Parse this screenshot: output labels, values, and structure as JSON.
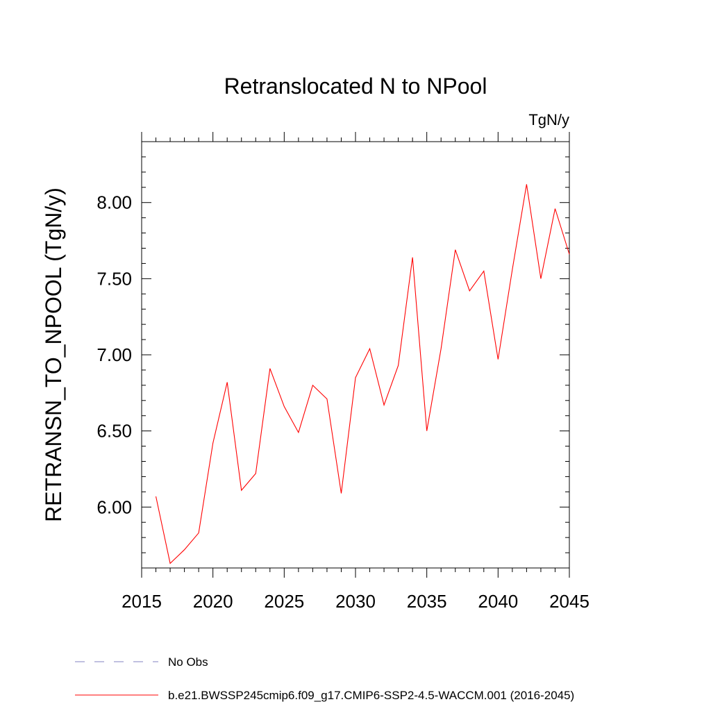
{
  "chart_data": {
    "type": "line",
    "title": "Retranslocated N to NPool",
    "units": "TgN/y",
    "ylabel": "RETRANSN_TO_NPOOL  (TgN/y)",
    "xlabel": "",
    "xlim": [
      2015,
      2045
    ],
    "ylim": [
      5.6,
      8.4
    ],
    "x_ticks": [
      2015,
      2020,
      2025,
      2030,
      2035,
      2040,
      2045
    ],
    "x_tick_labels": [
      "2015",
      "2020",
      "2025",
      "2030",
      "2035",
      "2040",
      "2045"
    ],
    "y_ticks": [
      6.0,
      6.5,
      7.0,
      7.5,
      8.0
    ],
    "y_tick_labels": [
      "6.00",
      "6.50",
      "7.00",
      "7.50",
      "8.00"
    ],
    "x": [
      2016,
      2017,
      2018,
      2019,
      2020,
      2021,
      2022,
      2023,
      2024,
      2025,
      2026,
      2027,
      2028,
      2029,
      2030,
      2031,
      2032,
      2033,
      2034,
      2035,
      2036,
      2037,
      2038,
      2039,
      2040,
      2041,
      2042,
      2043,
      2044,
      2045
    ],
    "series": [
      {
        "name": "b.e21.BWSSP245cmip6.f09_g17.CMIP6-SSP2-4.5-WACCM.001 (2016-2045)",
        "color": "#ff0000",
        "values": [
          6.07,
          5.63,
          5.72,
          5.83,
          6.42,
          6.82,
          6.11,
          6.22,
          6.91,
          6.66,
          6.49,
          6.8,
          6.71,
          6.09,
          6.85,
          7.04,
          6.67,
          6.93,
          7.64,
          6.5,
          7.04,
          7.69,
          7.42,
          7.55,
          6.97,
          7.56,
          8.12,
          7.5,
          7.96,
          7.66
        ]
      }
    ],
    "legend": {
      "placement": "bottom",
      "entries": [
        {
          "label": "No Obs",
          "style": "dashed",
          "color": "#8080c0"
        },
        {
          "label": "b.e21.BWSSP245cmip6.f09_g17.CMIP6-SSP2-4.5-WACCM.001 (2016-2045)",
          "style": "solid",
          "color": "#ff0000"
        }
      ]
    },
    "grid": false
  }
}
